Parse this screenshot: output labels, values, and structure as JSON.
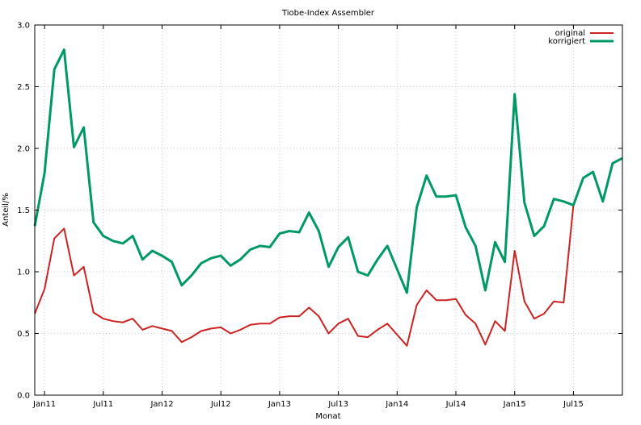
{
  "chart_data": {
    "type": "line",
    "title": "Tiobe-Index Assembler",
    "xlabel": "Monat",
    "ylabel": "Anteil/%",
    "ylim": [
      0,
      3.0
    ],
    "y_ticks": [
      "0.0",
      "0.5",
      "1.0",
      "1.5",
      "2.0",
      "2.5",
      "3.0"
    ],
    "x_tick_labels": [
      "Jan11",
      "Jul11",
      "Jan12",
      "Jul12",
      "Jan13",
      "Jul13",
      "Jan14",
      "Jul14",
      "Jan15",
      "Jul15"
    ],
    "x_start": "2010-12",
    "x_end": "2015-12",
    "grid": true,
    "legend_position": "top-right",
    "x": [
      "2010-12",
      "2011-01",
      "2011-02",
      "2011-03",
      "2011-04",
      "2011-05",
      "2011-06",
      "2011-07",
      "2011-08",
      "2011-09",
      "2011-10",
      "2011-11",
      "2011-12",
      "2012-01",
      "2012-02",
      "2012-03",
      "2012-04",
      "2012-05",
      "2012-06",
      "2012-07",
      "2012-08",
      "2012-09",
      "2012-10",
      "2012-11",
      "2012-12",
      "2013-01",
      "2013-02",
      "2013-03",
      "2013-04",
      "2013-05",
      "2013-06",
      "2013-07",
      "2013-08",
      "2013-09",
      "2013-10",
      "2013-11",
      "2013-12",
      "2014-01",
      "2014-02",
      "2014-03",
      "2014-04",
      "2014-05",
      "2014-06",
      "2014-07",
      "2014-08",
      "2014-09",
      "2014-10",
      "2014-11",
      "2014-12",
      "2015-01",
      "2015-02",
      "2015-03",
      "2015-04",
      "2015-05",
      "2015-06",
      "2015-07",
      "2015-08",
      "2015-09",
      "2015-10",
      "2015-11",
      "2015-12"
    ],
    "series": [
      {
        "name": "original",
        "color": "#cc2222",
        "values": [
          0.66,
          0.86,
          1.27,
          1.35,
          0.97,
          1.04,
          0.67,
          0.62,
          0.6,
          0.59,
          0.62,
          0.53,
          0.56,
          0.54,
          0.52,
          0.43,
          0.47,
          0.52,
          0.54,
          0.55,
          0.5,
          0.53,
          0.57,
          0.58,
          0.58,
          0.63,
          0.64,
          0.64,
          0.71,
          0.64,
          0.5,
          0.58,
          0.62,
          0.48,
          0.47,
          0.53,
          0.58,
          0.49,
          0.4,
          0.73,
          0.85,
          0.77,
          0.77,
          0.78,
          0.65,
          0.58,
          0.41,
          0.6,
          0.52,
          1.17,
          0.76,
          0.62,
          0.66,
          0.76,
          0.75,
          1.54,
          1.76,
          1.81,
          1.57,
          1.88,
          1.92
        ]
      },
      {
        "name": "korrigiert",
        "color": "#009966",
        "values": [
          1.37,
          1.8,
          2.64,
          2.8,
          2.01,
          2.17,
          1.4,
          1.29,
          1.25,
          1.23,
          1.29,
          1.1,
          1.17,
          1.13,
          1.08,
          0.89,
          0.97,
          1.07,
          1.11,
          1.13,
          1.05,
          1.1,
          1.18,
          1.21,
          1.2,
          1.31,
          1.33,
          1.32,
          1.48,
          1.33,
          1.04,
          1.2,
          1.28,
          1.0,
          0.97,
          1.1,
          1.21,
          1.02,
          0.83,
          1.52,
          1.78,
          1.61,
          1.61,
          1.62,
          1.36,
          1.21,
          0.85,
          1.24,
          1.08,
          2.44,
          1.56,
          1.29,
          1.37,
          1.59,
          1.57,
          1.54,
          1.76,
          1.81,
          1.57,
          1.88,
          1.92
        ]
      }
    ]
  }
}
